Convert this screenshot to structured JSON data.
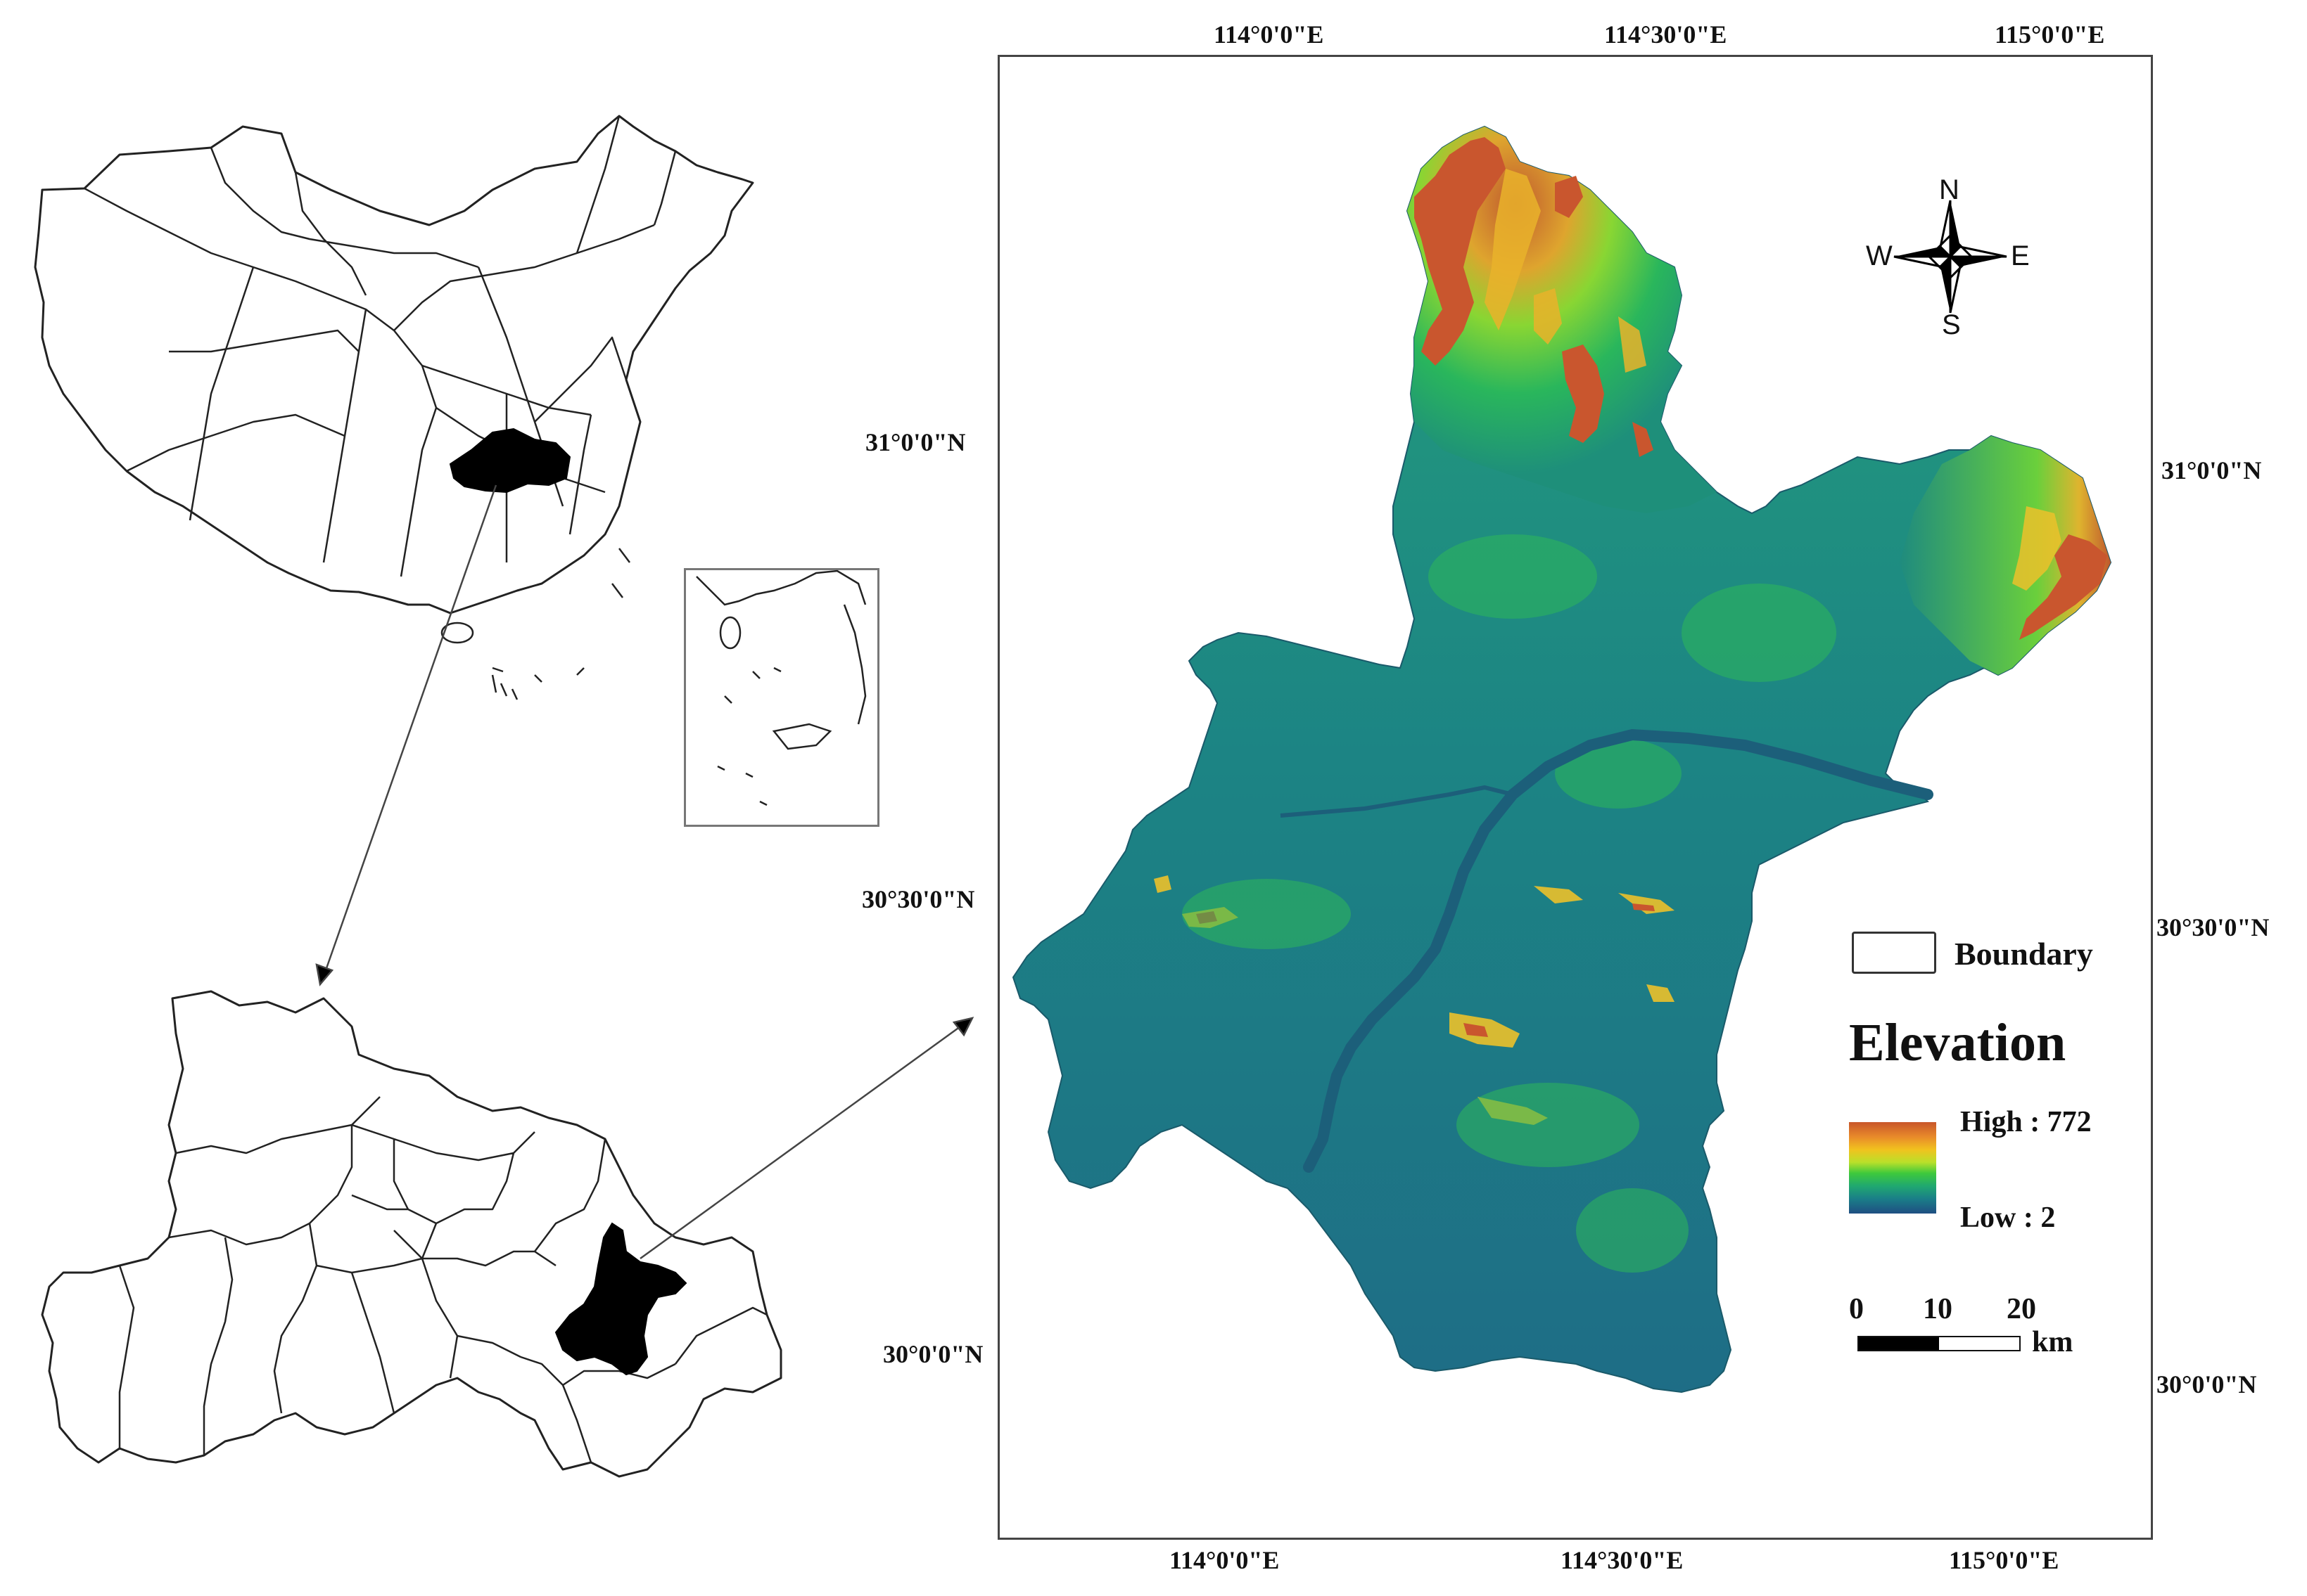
{
  "axes": {
    "top_longitudes": [
      "114°0'0\"E",
      "114°30'0\"E",
      "115°0'0\"E"
    ],
    "bottom_longitudes": [
      "114°0'0\"E",
      "114°30'0\"E",
      "115°0'0\"E"
    ],
    "left_latitudes": [
      "31°0'0\"N",
      "30°30'0\"N",
      "30°0'0\"N"
    ],
    "right_latitudes": [
      "31°0'0\"N",
      "30°30'0\"N",
      "30°0'0\"N"
    ]
  },
  "north_arrow": {
    "n": "N",
    "s": "S",
    "e": "E",
    "w": "W"
  },
  "legend": {
    "boundary_label": "Boundary",
    "elevation_title": "Elevation",
    "high_label": "High : 772",
    "low_label": "Low : 2",
    "high_value": 772,
    "low_value": 2,
    "ramp_colors": [
      "#c8562a",
      "#e88a2a",
      "#f1c21e",
      "#b9e02a",
      "#3ec93c",
      "#20a870",
      "#1a7e88",
      "#1f4e82"
    ]
  },
  "scale": {
    "ticks": [
      "0",
      "10",
      "20"
    ],
    "unit": "km"
  },
  "colors": {
    "highlight": "#000000",
    "outline": "#222222",
    "water": "#1c5f7a"
  }
}
